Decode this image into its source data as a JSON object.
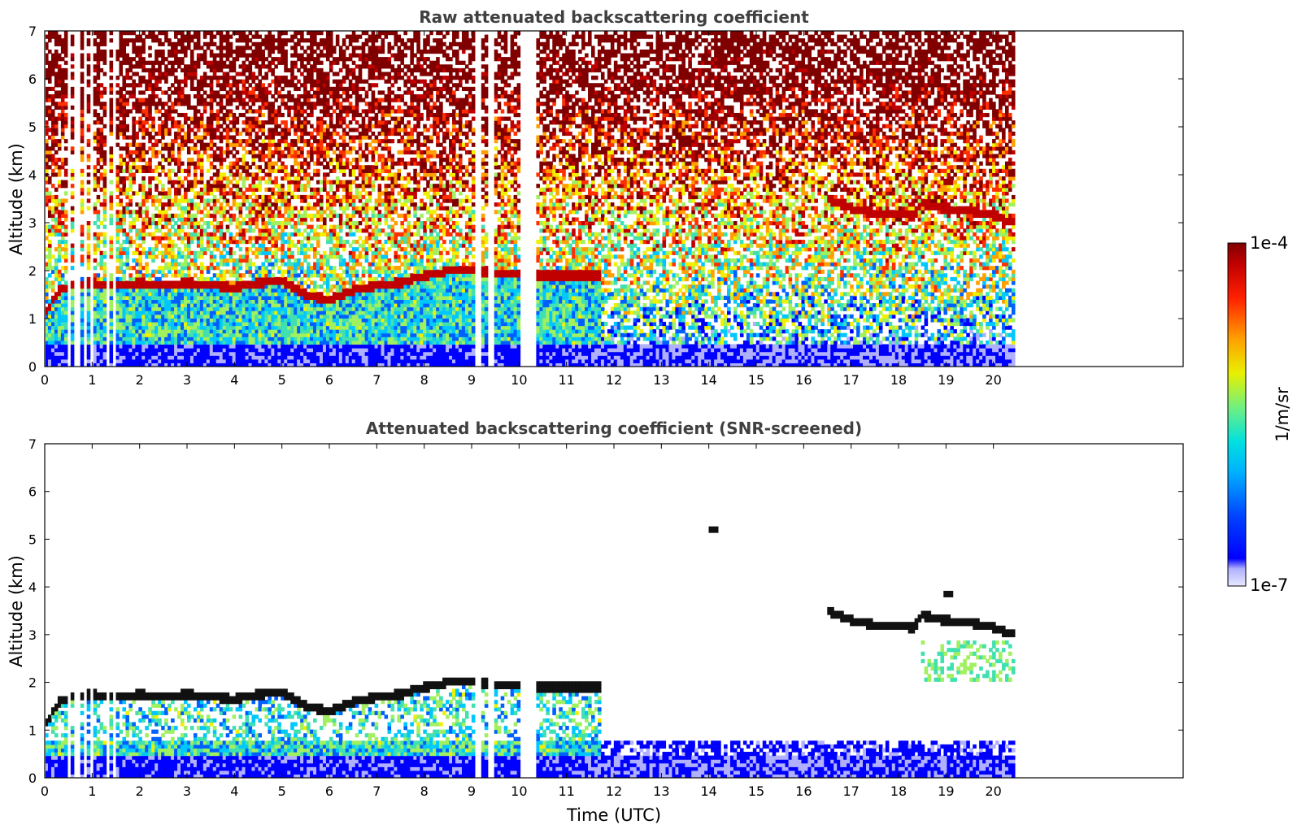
{
  "chart_data": [
    {
      "type": "heatmap",
      "title": "Raw attenuated backscattering coefficient",
      "xlabel": "",
      "ylabel": "Altitude (km)",
      "xlim": [
        0,
        24
      ],
      "ylim": [
        0,
        7
      ],
      "xticks": [
        "0",
        "1",
        "2",
        "3",
        "4",
        "5",
        "6",
        "7",
        "8",
        "9",
        "10",
        "11",
        "12",
        "13",
        "14",
        "15",
        "16",
        "17",
        "18",
        "19",
        "20"
      ],
      "yticks": [
        "0",
        "1",
        "2",
        "3",
        "4",
        "5",
        "6",
        "7"
      ],
      "data_extent_hours": [
        0,
        20.45
      ],
      "data_gaps_hours": [
        [
          0.45,
          0.52
        ],
        [
          0.62,
          0.75
        ],
        [
          0.82,
          0.9
        ],
        [
          0.98,
          1.05
        ],
        [
          1.3,
          1.35
        ],
        [
          1.45,
          1.52
        ],
        [
          9.1,
          9.22
        ],
        [
          9.35,
          9.5
        ],
        [
          9.65,
          9.7
        ],
        [
          9.8,
          9.85
        ],
        [
          10.0,
          10.35
        ]
      ],
      "cloud_layer_base_km": [
        [
          0.0,
          1.1
        ],
        [
          0.3,
          1.6
        ],
        [
          0.6,
          1.7
        ],
        [
          1.0,
          1.75
        ],
        [
          1.5,
          1.7
        ],
        [
          2.0,
          1.75
        ],
        [
          2.5,
          1.7
        ],
        [
          3.0,
          1.75
        ],
        [
          3.5,
          1.7
        ],
        [
          4.0,
          1.65
        ],
        [
          4.5,
          1.75
        ],
        [
          5.0,
          1.8
        ],
        [
          5.5,
          1.5
        ],
        [
          6.0,
          1.4
        ],
        [
          6.5,
          1.6
        ],
        [
          7.0,
          1.7
        ],
        [
          7.5,
          1.75
        ],
        [
          8.0,
          1.9
        ],
        [
          8.5,
          2.0
        ],
        [
          9.0,
          2.0
        ],
        [
          9.6,
          1.95
        ],
        [
          10.5,
          1.9
        ],
        [
          11.0,
          1.9
        ],
        [
          11.7,
          1.9
        ],
        [
          16.5,
          3.5
        ],
        [
          17.0,
          3.3
        ],
        [
          17.5,
          3.2
        ],
        [
          18.0,
          3.2
        ],
        [
          18.3,
          3.15
        ],
        [
          18.5,
          3.4
        ],
        [
          19.0,
          3.3
        ],
        [
          19.5,
          3.25
        ],
        [
          20.0,
          3.15
        ],
        [
          20.45,
          3.0
        ]
      ],
      "isolated_features": [
        {
          "x": 19.05,
          "y": 3.85
        },
        {
          "x": 14.1,
          "y": 5.2
        }
      ]
    },
    {
      "type": "heatmap",
      "title": "Attenuated backscattering coefficient (SNR-screened)",
      "xlabel": "Time (UTC)",
      "ylabel": "Altitude (km)",
      "xlim": [
        0,
        24
      ],
      "ylim": [
        0,
        7
      ],
      "xticks": [
        "0",
        "1",
        "2",
        "3",
        "4",
        "5",
        "6",
        "7",
        "8",
        "9",
        "10",
        "11",
        "12",
        "13",
        "14",
        "15",
        "16",
        "17",
        "18",
        "19",
        "20"
      ],
      "yticks": [
        "0",
        "1",
        "2",
        "3",
        "4",
        "5",
        "6",
        "7"
      ],
      "data_extent_hours": [
        0,
        20.45
      ]
    }
  ],
  "colorbar": {
    "label": "1/m/sr",
    "max_label": "1e-4",
    "min_label": "1e-7",
    "scale": "log",
    "colormap": [
      "#e8e8ff",
      "#b0b0ff",
      "#0000ff",
      "#0060ff",
      "#00c8ff",
      "#40e0b0",
      "#a0f060",
      "#f0f000",
      "#ffa000",
      "#ff3000",
      "#c00000",
      "#800000"
    ]
  }
}
